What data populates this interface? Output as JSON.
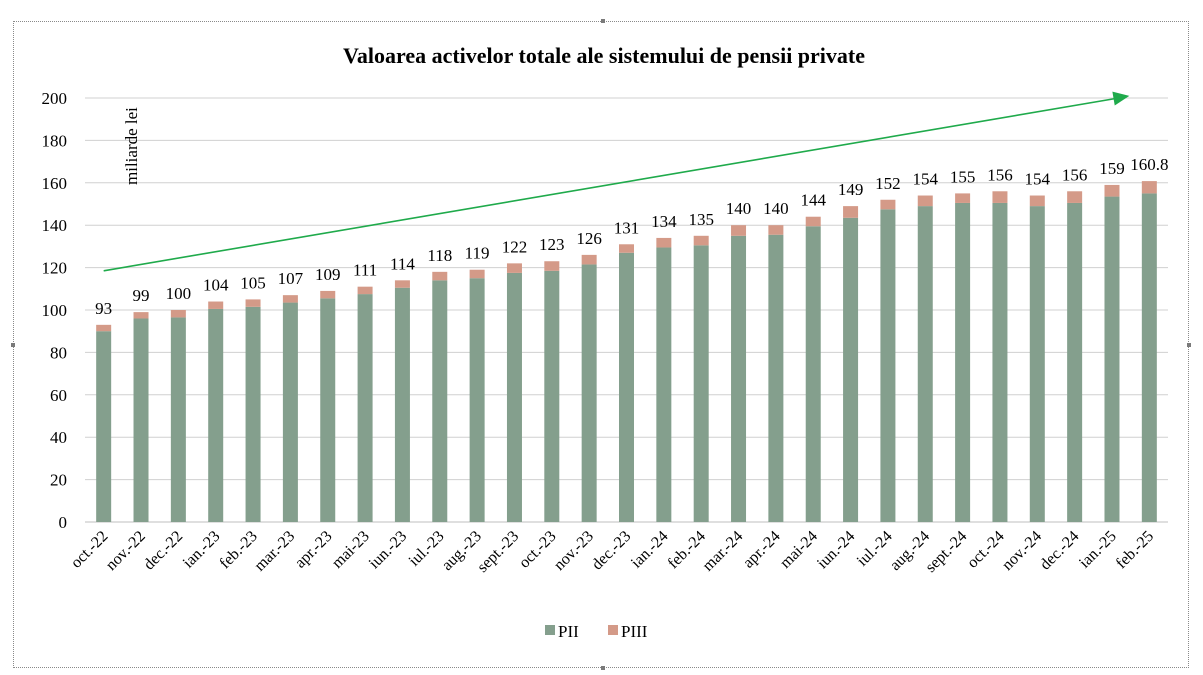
{
  "chart_data": {
    "type": "bar",
    "stacked": true,
    "title": "Valoarea activelor totale ale sistemului de pensii private",
    "ylabel": "miliarde  lei",
    "xlabel": "",
    "ylim": [
      0,
      200
    ],
    "yticks": [
      0,
      20,
      40,
      60,
      80,
      100,
      120,
      140,
      160,
      180,
      200
    ],
    "grid": true,
    "legend_position": "bottom",
    "categories": [
      "oct.-22",
      "nov.-22",
      "dec.-22",
      "ian.-23",
      "feb.-23",
      "mar.-23",
      "apr.-23",
      "mai-23",
      "iun.-23",
      "iul.-23",
      "aug.-23",
      "sept.-23",
      "oct.-23",
      "nov.-23",
      "dec.-23",
      "ian.-24",
      "feb.-24",
      "mar.-24",
      "apr.-24",
      "mai-24",
      "iun.-24",
      "iul.-24",
      "aug.-24",
      "sept.-24",
      "oct.-24",
      "nov.-24",
      "dec.-24",
      "ian.-25",
      "feb.-25"
    ],
    "series": [
      {
        "name": "PII",
        "color": "#849f8d",
        "values": [
          90,
          96,
          96.5,
          100.5,
          101.5,
          103.5,
          105.5,
          107.5,
          110.5,
          114,
          115,
          117.5,
          118.5,
          121.5,
          127,
          129.5,
          130.5,
          135,
          135.5,
          139.5,
          143.5,
          147.5,
          149,
          150.5,
          150.5,
          149,
          150.5,
          153.5,
          155
        ]
      },
      {
        "name": "PIII",
        "color": "#d49a88",
        "values": [
          3,
          3,
          3.5,
          3.5,
          3.5,
          3.5,
          3.5,
          3.5,
          3.5,
          4,
          4,
          4.5,
          4.5,
          4.5,
          4,
          4.5,
          4.5,
          5,
          4.5,
          4.5,
          5.5,
          4.5,
          5,
          4.5,
          5.5,
          5,
          5.5,
          5.5,
          5.8
        ]
      }
    ],
    "totals_labels": [
      "93",
      "99",
      "100",
      "104",
      "105",
      "107",
      "109",
      "111",
      "114",
      "118",
      "119",
      "122",
      "123",
      "126",
      "131",
      "134",
      "135",
      "140",
      "140",
      "144",
      "149",
      "152",
      "154",
      "155",
      "156",
      "154",
      "156",
      "159",
      "160.8"
    ],
    "trend_arrow": {
      "color": "#1faa4b",
      "from": {
        "category": "oct.-22",
        "y": 118.5
      },
      "to": {
        "category": "feb.-25",
        "y": 201
      }
    }
  }
}
